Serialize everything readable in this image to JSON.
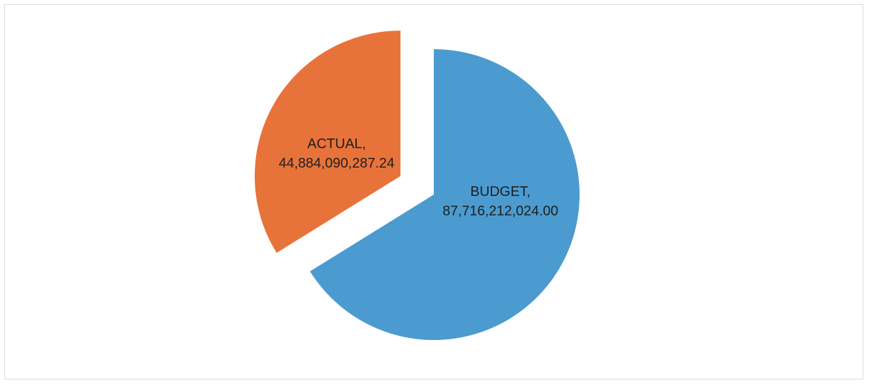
{
  "chart_data": {
    "type": "pie",
    "slices": [
      {
        "label": "BUDGET",
        "value": 87716212024.0,
        "name_text": "BUDGET,",
        "value_text": "87,716,212,024.00",
        "color": "#4b9bd0"
      },
      {
        "label": "ACTUAL",
        "value": 44884090287.24,
        "name_text": "ACTUAL,",
        "value_text": "44,884,090,287.24",
        "color": "#e8733a"
      }
    ],
    "exploded": "ACTUAL",
    "legend": "none"
  }
}
